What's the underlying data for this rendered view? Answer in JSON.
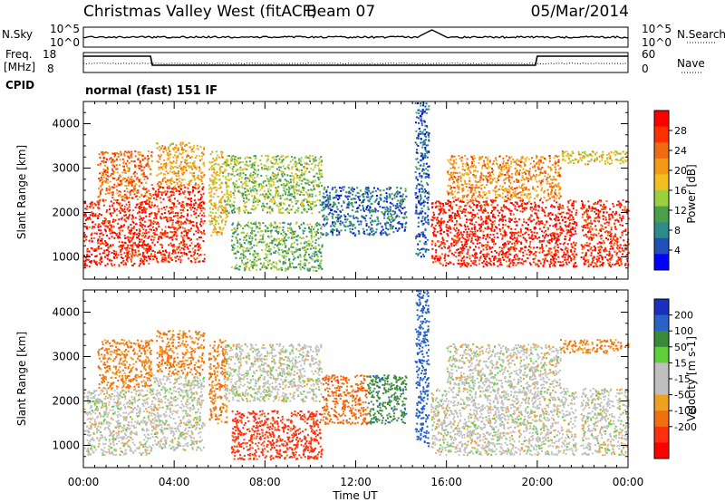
{
  "header": {
    "station": "Christmas Valley West (fitACF)",
    "beam": "Beam 07",
    "date": "05/Mar/2014"
  },
  "strip": {
    "nsky_label": "N.Sky",
    "nsearch_label": "N.Search",
    "count_ticks_left": [
      "10^5",
      "10^0"
    ],
    "count_ticks_right": [
      "10^5",
      "10^0"
    ],
    "freq_label_line1": "Freq.",
    "freq_label_line2": "[MHz]",
    "freq_ticks": [
      "18",
      "8"
    ],
    "nave_label": "Nave",
    "nave_ticks": [
      "60",
      "0"
    ],
    "cpid_label": "CPID",
    "cpid_value": "normal (fast) 151 IF"
  },
  "colors": {
    "power": [
      "#0000ff",
      "#1f4fb8",
      "#2e8b8b",
      "#4aa04a",
      "#9bcf3c",
      "#f0c020",
      "#f09a18",
      "#f06a10",
      "#ff3000",
      "#ff0000"
    ],
    "velocity": [
      "#1a2fbf",
      "#2a62c8",
      "#3a8a3a",
      "#5fcf3a",
      "#c0c0c0",
      "#c0c0c0",
      "#f0a020",
      "#f07010",
      "#ff3010",
      "#ff0000"
    ],
    "ground": "#c0c0c0"
  },
  "chart_data": [
    {
      "type": "heatmap",
      "panel": "power",
      "ylabel": "Slant Range [km]",
      "yticks": [
        "1000",
        "2000",
        "3000",
        "4000"
      ],
      "ylim": [
        500,
        4500
      ],
      "xlim": [
        0,
        24
      ],
      "colorbar_label": "Power [dB]",
      "colorbar_ticks": [
        "4",
        "8",
        "12",
        "16",
        "20",
        "24",
        "28"
      ],
      "colorbar_range": [
        0,
        32
      ],
      "regions": [
        {
          "t0": 0.0,
          "t1": 3.0,
          "r0": 800,
          "r1": 2300,
          "value": 29
        },
        {
          "t0": 0.6,
          "t1": 3.0,
          "r0": 2300,
          "r1": 3400,
          "value": 24
        },
        {
          "t0": 3.0,
          "t1": 5.3,
          "r0": 900,
          "r1": 2600,
          "value": 28
        },
        {
          "t0": 3.2,
          "t1": 5.3,
          "r0": 2600,
          "r1": 3600,
          "value": 20
        },
        {
          "t0": 5.5,
          "t1": 6.3,
          "r0": 1500,
          "r1": 3400,
          "value": 18
        },
        {
          "t0": 6.2,
          "t1": 10.5,
          "r0": 2000,
          "r1": 3300,
          "value": 14
        },
        {
          "t0": 6.5,
          "t1": 10.5,
          "r0": 700,
          "r1": 1800,
          "value": 12
        },
        {
          "t0": 10.5,
          "t1": 14.2,
          "r0": 1500,
          "r1": 2600,
          "value": 7
        },
        {
          "t0": 14.6,
          "t1": 15.2,
          "r0": 1000,
          "r1": 4500,
          "value": 6
        },
        {
          "t0": 15.3,
          "t1": 21.7,
          "r0": 800,
          "r1": 2300,
          "value": 29
        },
        {
          "t0": 16.0,
          "t1": 21.0,
          "r0": 2300,
          "r1": 3300,
          "value": 22
        },
        {
          "t0": 21.9,
          "t1": 24.0,
          "r0": 800,
          "r1": 2300,
          "value": 28
        },
        {
          "t0": 21.0,
          "t1": 24.0,
          "r0": 3100,
          "r1": 3400,
          "value": 18
        }
      ]
    },
    {
      "type": "heatmap",
      "panel": "velocity",
      "ylabel": "Slant Range [km]",
      "yticks": [
        "1000",
        "2000",
        "3000",
        "4000"
      ],
      "ylim": [
        500,
        4500
      ],
      "xlim": [
        0,
        24
      ],
      "xlabel": "Time UT",
      "xticks": [
        "00:00",
        "04:00",
        "08:00",
        "12:00",
        "16:00",
        "20:00",
        "00:00"
      ],
      "colorbar_label": "Velocity [m s-1]",
      "colorbar_ticks": [
        "200",
        "100",
        "50",
        "15",
        "-15",
        "-50",
        "-100",
        "-200"
      ],
      "regions": [
        {
          "t0": 0.0,
          "t1": 3.0,
          "r0": 800,
          "r1": 2300,
          "value": 0
        },
        {
          "t0": 0.6,
          "t1": 3.0,
          "r0": 2300,
          "r1": 3400,
          "value": -40
        },
        {
          "t0": 3.0,
          "t1": 5.3,
          "r0": 900,
          "r1": 2600,
          "value": 0
        },
        {
          "t0": 3.2,
          "t1": 5.3,
          "r0": 2600,
          "r1": 3600,
          "value": -40
        },
        {
          "t0": 5.5,
          "t1": 6.3,
          "r0": 1500,
          "r1": 3400,
          "value": -40
        },
        {
          "t0": 6.2,
          "t1": 10.5,
          "r0": 2000,
          "r1": 3300,
          "value": 0
        },
        {
          "t0": 6.5,
          "t1": 10.5,
          "r0": 700,
          "r1": 1800,
          "value": -90
        },
        {
          "t0": 10.5,
          "t1": 12.5,
          "r0": 1500,
          "r1": 2600,
          "value": -60
        },
        {
          "t0": 12.5,
          "t1": 14.2,
          "r0": 1500,
          "r1": 2600,
          "value": 60
        },
        {
          "t0": 14.6,
          "t1": 15.2,
          "r0": 1000,
          "r1": 4500,
          "value": 120
        },
        {
          "t0": 15.3,
          "t1": 21.7,
          "r0": 800,
          "r1": 2300,
          "value": 0
        },
        {
          "t0": 16.0,
          "t1": 21.0,
          "r0": 2300,
          "r1": 3300,
          "value": 0
        },
        {
          "t0": 21.9,
          "t1": 24.0,
          "r0": 800,
          "r1": 2300,
          "value": 0
        },
        {
          "t0": 21.0,
          "t1": 24.0,
          "r0": 3100,
          "r1": 3400,
          "value": -40
        }
      ]
    }
  ]
}
